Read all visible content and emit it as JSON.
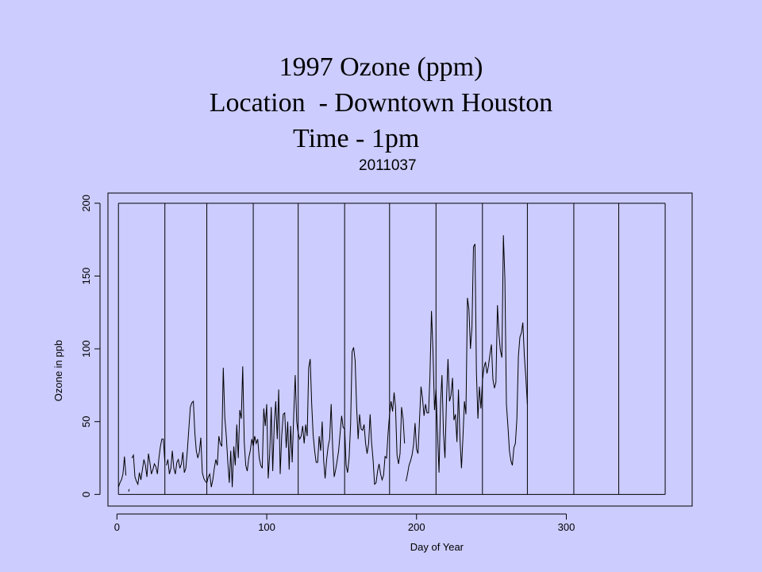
{
  "slide": {
    "title_line1": "1997 Ozone (ppm)",
    "title_line2": "Location  - Downtown Houston",
    "title_line3": "Time - 1pm",
    "subtitle": "2011037"
  },
  "colors": {
    "background": "#ccccff",
    "line": "#000000"
  },
  "chart_data": {
    "type": "line",
    "xlabel": "Day of Year",
    "ylabel": "Ozone in ppb",
    "xlim": [
      -6,
      384
    ],
    "ylim": [
      -8,
      207
    ],
    "xticks": [
      0,
      100,
      200,
      300
    ],
    "yticks": [
      0,
      50,
      100,
      150,
      200
    ],
    "month_boundaries": [
      1,
      32,
      60,
      91,
      121,
      152,
      182,
      213,
      244,
      274,
      305,
      335,
      366
    ],
    "month_box_top": 200,
    "month_box_bottom": 0,
    "series": [
      {
        "segments": [
          {
            "x": [
              1,
              2,
              3,
              4,
              5,
              6
            ],
            "y": [
              5,
              8,
              10,
              14,
              26,
              13
            ]
          },
          {
            "x": [
              8
            ],
            "y": [
              2
            ]
          },
          {
            "x": [
              10,
              11,
              12,
              13,
              14,
              15,
              16,
              17,
              18,
              19,
              20,
              21,
              22,
              23,
              24,
              25,
              26,
              27,
              28,
              29,
              30,
              31,
              32
            ],
            "y": [
              25,
              27,
              12,
              9,
              7,
              15,
              10,
              17,
              24,
              20,
              12,
              28,
              22,
              14,
              17,
              21,
              19,
              14,
              25,
              33,
              38,
              38,
              22
            ]
          },
          {
            "x": [
              33,
              34,
              35,
              36,
              37,
              38,
              39,
              40,
              41,
              42,
              43,
              44,
              45,
              46,
              47,
              48,
              49,
              50,
              51,
              52,
              53,
              54,
              55,
              56,
              57,
              58,
              59,
              60,
              61,
              62,
              63,
              64,
              65,
              66,
              67,
              68,
              69,
              70,
              71,
              72,
              73,
              74,
              75,
              76,
              77,
              78,
              79,
              80,
              81,
              82,
              83,
              84,
              85,
              86,
              87,
              88,
              89,
              90,
              91,
              92,
              93,
              94,
              95,
              96,
              97,
              98,
              99,
              100,
              101,
              102,
              103,
              104,
              105,
              106,
              107,
              108,
              109,
              110,
              111,
              112,
              113,
              114,
              115,
              116,
              117,
              118,
              119,
              120,
              121,
              122,
              123,
              124,
              125,
              126,
              127,
              128,
              129,
              130,
              131,
              132,
              133,
              134,
              135,
              136,
              137,
              138,
              139,
              140,
              141,
              142,
              143,
              144,
              145,
              146,
              147,
              148,
              149,
              150,
              151,
              152,
              153,
              154,
              155,
              156,
              157,
              158,
              159,
              160,
              161,
              162,
              163,
              164,
              165,
              166,
              167,
              168,
              169,
              170,
              171,
              172,
              173,
              174,
              175,
              176,
              177,
              178,
              179,
              180,
              181,
              182,
              183,
              184,
              185,
              186,
              187,
              188,
              189,
              190,
              191,
              192
            ],
            "y": [
              20,
              24,
              14,
              18,
              30,
              18,
              14,
              22,
              24,
              18,
              21,
              29,
              15,
              18,
              30,
              45,
              60,
              63,
              64,
              42,
              30,
              25,
              29,
              39,
              15,
              11,
              9,
              8,
              12,
              14,
              5,
              10,
              18,
              24,
              20,
              40,
              35,
              33,
              87,
              53,
              40,
              22,
              8,
              30,
              5,
              33,
              20,
              48,
              25,
              58,
              52,
              88,
              36,
              20,
              16,
              25,
              30,
              38,
              33,
              40,
              35,
              38,
              25,
              20,
              18,
              59,
              47,
              62,
              11,
              28,
              60,
              16,
              48,
              64,
              38,
              72,
              14,
              40,
              55,
              56,
              32,
              50,
              17,
              47,
              22,
              54,
              82,
              50,
              42,
              38,
              40,
              47,
              35,
              48,
              40,
              87,
              93,
              62,
              41,
              30,
              22,
              22,
              40,
              30,
              50,
              23,
              11,
              24,
              33,
              38,
              62,
              32,
              12,
              17,
              23,
              30,
              42,
              54,
              46,
              45,
              20,
              15,
              25,
              48,
              98,
              101,
              92,
              60,
              38,
              55,
              45,
              44,
              48,
              35,
              28,
              35,
              55,
              36,
              24,
              7,
              8,
              16,
              21,
              14,
              10,
              13,
              26,
              25,
              42,
              55,
              64,
              57,
              70,
              60,
              27,
              21,
              28,
              60,
              52,
              35
            ]
          },
          {
            "x": [
              193,
              194,
              195,
              196,
              197,
              198,
              199,
              200,
              201,
              202,
              203,
              204,
              205,
              206,
              207,
              208,
              209,
              210,
              211,
              212,
              213,
              214,
              215,
              216,
              217,
              218,
              219,
              220,
              221,
              222,
              223,
              224,
              225,
              226,
              227,
              228,
              229,
              230,
              231,
              232,
              233,
              234,
              235,
              236,
              237,
              238,
              239,
              240,
              241,
              242,
              243,
              244,
              245,
              246,
              247,
              248,
              249,
              250,
              251,
              252,
              253,
              254,
              255,
              256,
              257,
              258,
              259,
              260,
              261,
              262,
              263,
              264,
              265,
              266,
              267,
              268,
              269,
              270,
              271,
              272,
              273,
              274
            ],
            "y": [
              9,
              14,
              20,
              23,
              27,
              34,
              49,
              31,
              28,
              51,
              74,
              66,
              54,
              62,
              56,
              56,
              82,
              126,
              98,
              58,
              72,
              42,
              15,
              62,
              82,
              42,
              25,
              65,
              93,
              64,
              68,
              80,
              51,
              55,
              36,
              72,
              38,
              18,
              40,
              64,
              55,
              135,
              127,
              100,
              115,
              170,
              172,
              84,
              52,
              74,
              59,
              78,
              87,
              91,
              83,
              88,
              96,
              103,
              79,
              73,
              77,
              130,
              110,
              99,
              94,
              178,
              148,
              62,
              47,
              30,
              23,
              20,
              32,
              35,
              52,
              95,
              108,
              111,
              118,
              95,
              80,
              62
            ]
          }
        ]
      }
    ]
  }
}
